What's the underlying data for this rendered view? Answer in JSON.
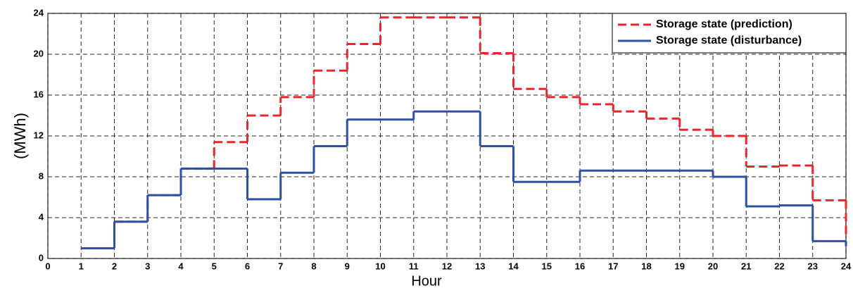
{
  "chart_data": {
    "type": "step-line",
    "xlabel": "Hour",
    "ylabel": "(MWh)",
    "x": [
      1,
      2,
      3,
      4,
      5,
      6,
      7,
      8,
      9,
      10,
      11,
      12,
      13,
      14,
      15,
      16,
      17,
      18,
      19,
      20,
      21,
      22,
      23,
      24
    ],
    "series": [
      {
        "name": "Storage state (prediction)",
        "color": "#e8262b",
        "dash": true,
        "values": [
          1.0,
          3.6,
          6.2,
          8.8,
          11.4,
          14.0,
          15.8,
          18.4,
          21.0,
          23.6,
          23.6,
          23.6,
          20.1,
          16.6,
          15.8,
          15.1,
          14.4,
          13.7,
          12.6,
          12.0,
          9.0,
          9.1,
          5.7,
          2.2
        ]
      },
      {
        "name": "Storage state (disturbance)",
        "color": "#2e4fa3",
        "dash": false,
        "values": [
          1.0,
          3.6,
          6.2,
          8.8,
          8.8,
          5.8,
          8.4,
          11.0,
          13.6,
          13.6,
          14.4,
          14.4,
          11.0,
          7.5,
          7.5,
          8.6,
          8.6,
          8.6,
          8.6,
          8.0,
          5.1,
          5.2,
          1.7,
          1.2
        ]
      }
    ],
    "xlim": [
      0,
      24
    ],
    "xticks": [
      0,
      1,
      2,
      3,
      4,
      5,
      6,
      7,
      8,
      9,
      10,
      11,
      12,
      13,
      14,
      15,
      16,
      17,
      18,
      19,
      20,
      21,
      22,
      23,
      24
    ],
    "ylim": [
      0,
      24
    ],
    "yticks": [
      0,
      4,
      8,
      12,
      16,
      20,
      24
    ],
    "grid": true,
    "legend": "upper-right"
  }
}
